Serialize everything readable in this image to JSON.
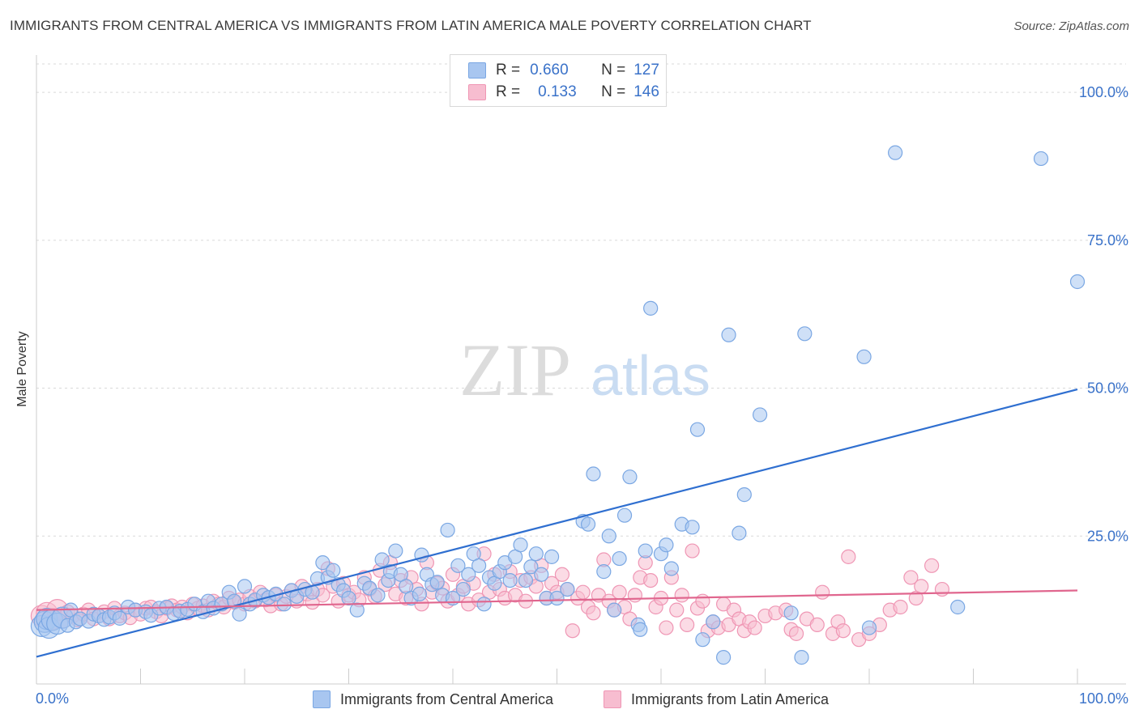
{
  "title": "IMMIGRANTS FROM CENTRAL AMERICA VS IMMIGRANTS FROM LATIN AMERICA MALE POVERTY CORRELATION CHART",
  "source": "Source: ZipAtlas.com",
  "watermark": {
    "zip": "ZIP",
    "atlas": "atlas"
  },
  "legend": {
    "blue": {
      "r_label": "R =",
      "r_value": "0.660",
      "n_label": "N =",
      "n_value": "127"
    },
    "pink": {
      "r_label": "R =",
      "r_value": "0.133",
      "n_label": "N =",
      "n_value": "146"
    }
  },
  "bottom_legend": {
    "blue": "Immigrants from Central America",
    "pink": "Immigrants from Latin America"
  },
  "colors": {
    "blue_fill": "#a8c6f0",
    "blue_stroke": "#7aa7e3",
    "blue_line": "#2f6fd0",
    "pink_fill": "#f7bdd0",
    "pink_stroke": "#ef96b4",
    "pink_line": "#e0668e",
    "axis_text": "#3a72c9",
    "grid": "#d9d9d9"
  },
  "chart_data": {
    "type": "scatter",
    "title": "IMMIGRANTS FROM CENTRAL AMERICA VS IMMIGRANTS FROM LATIN AMERICA MALE POVERTY CORRELATION CHART",
    "xlabel": "",
    "ylabel": "Male Poverty",
    "xlim": [
      0,
      100
    ],
    "ylim": [
      0,
      100
    ],
    "x_tick_labels": [
      "0.0%",
      "100.0%"
    ],
    "y_tick_values": [
      25,
      50,
      75,
      100
    ],
    "y_tick_labels": [
      "25.0%",
      "50.0%",
      "75.0%",
      "100.0%"
    ],
    "grid": true,
    "legend_position": "top-center",
    "series": [
      {
        "name": "Immigrants from Central America",
        "trend": {
          "x": [
            0,
            100
          ],
          "y": [
            4.6,
            49.8
          ]
        },
        "points": [
          [
            0.5,
            9.8
          ],
          [
            0.8,
            10.5
          ],
          [
            1,
            11
          ],
          [
            1.2,
            9.5
          ],
          [
            1.5,
            10.8
          ],
          [
            2,
            10.2
          ],
          [
            2.5,
            11.2
          ],
          [
            3,
            9.9
          ],
          [
            3.3,
            12.5
          ],
          [
            3.8,
            10.5
          ],
          [
            4.2,
            11
          ],
          [
            5,
            10.6
          ],
          [
            5.5,
            11.8
          ],
          [
            6,
            11.5
          ],
          [
            6.5,
            10.9
          ],
          [
            7,
            11.3
          ],
          [
            7.5,
            12
          ],
          [
            8,
            11.1
          ],
          [
            8.8,
            13
          ],
          [
            9.5,
            12.5
          ],
          [
            10.5,
            12.2
          ],
          [
            11,
            11.6
          ],
          [
            11.8,
            12.8
          ],
          [
            12.5,
            13
          ],
          [
            13.2,
            11.9
          ],
          [
            13.8,
            12.3
          ],
          [
            14.5,
            12.6
          ],
          [
            15.2,
            13.5
          ],
          [
            16,
            12.2
          ],
          [
            16.5,
            14
          ],
          [
            17,
            12.8
          ],
          [
            17.8,
            13.5
          ],
          [
            18.5,
            15.5
          ],
          [
            19,
            14
          ],
          [
            19.5,
            11.8
          ],
          [
            20,
            16.5
          ],
          [
            20.5,
            13.5
          ],
          [
            21,
            14.2
          ],
          [
            21.8,
            15
          ],
          [
            22.3,
            14.6
          ],
          [
            23,
            15.2
          ],
          [
            23.8,
            13.5
          ],
          [
            24.5,
            15.8
          ],
          [
            25,
            14.8
          ],
          [
            25.8,
            16
          ],
          [
            26.5,
            15.5
          ],
          [
            27,
            17.8
          ],
          [
            27.5,
            20.5
          ],
          [
            28,
            18
          ],
          [
            28.5,
            19.2
          ],
          [
            29,
            16.8
          ],
          [
            29.5,
            15.8
          ],
          [
            30,
            14.5
          ],
          [
            30.8,
            12.5
          ],
          [
            31.5,
            17
          ],
          [
            32,
            16.2
          ],
          [
            32.8,
            15
          ],
          [
            33.2,
            21
          ],
          [
            33.8,
            17.5
          ],
          [
            34,
            19
          ],
          [
            34.5,
            22.5
          ],
          [
            35,
            18.5
          ],
          [
            35.5,
            16.5
          ],
          [
            36,
            14.5
          ],
          [
            36.8,
            15.2
          ],
          [
            37,
            21.8
          ],
          [
            37.5,
            18.5
          ],
          [
            38,
            16.8
          ],
          [
            38.5,
            17.2
          ],
          [
            39,
            15
          ],
          [
            39.5,
            26
          ],
          [
            40,
            14.5
          ],
          [
            40.5,
            20
          ],
          [
            41,
            16
          ],
          [
            41.5,
            18.5
          ],
          [
            42,
            22
          ],
          [
            42.5,
            20
          ],
          [
            43,
            13.5
          ],
          [
            43.5,
            18
          ],
          [
            44,
            17
          ],
          [
            44.5,
            19
          ],
          [
            45,
            20.5
          ],
          [
            45.5,
            17.5
          ],
          [
            46,
            21.5
          ],
          [
            46.5,
            23.5
          ],
          [
            47,
            17.5
          ],
          [
            47.5,
            19.8
          ],
          [
            48,
            22
          ],
          [
            48.5,
            18.5
          ],
          [
            49,
            14.5
          ],
          [
            49.5,
            21.5
          ],
          [
            50,
            14.5
          ],
          [
            51,
            16
          ],
          [
            52.5,
            27.5
          ],
          [
            53,
            27
          ],
          [
            53.5,
            35.5
          ],
          [
            54.5,
            19
          ],
          [
            55,
            25
          ],
          [
            55.5,
            12.5
          ],
          [
            56,
            21.2
          ],
          [
            56.5,
            28.5
          ],
          [
            57,
            35
          ],
          [
            57.8,
            10
          ],
          [
            58,
            9.2
          ],
          [
            58.5,
            22.5
          ],
          [
            59,
            63.5
          ],
          [
            60,
            22
          ],
          [
            60.5,
            23.5
          ],
          [
            61,
            19.5
          ],
          [
            62,
            27
          ],
          [
            63,
            26.5
          ],
          [
            63.5,
            43
          ],
          [
            64,
            7.5
          ],
          [
            65,
            10.5
          ],
          [
            66,
            4.5
          ],
          [
            66.5,
            59
          ],
          [
            67.5,
            25.5
          ],
          [
            68,
            32
          ],
          [
            69.5,
            45.5
          ],
          [
            72.5,
            12
          ],
          [
            73.5,
            4.5
          ],
          [
            73.8,
            59.2
          ],
          [
            79.5,
            55.3
          ],
          [
            80,
            9.5
          ],
          [
            82.5,
            89.8
          ],
          [
            88.5,
            13
          ],
          [
            96.5,
            88.8
          ],
          [
            100,
            68
          ]
        ]
      },
      {
        "name": "Immigrants from Latin America",
        "trend": {
          "x": [
            0,
            100
          ],
          "y": [
            12.5,
            15.8
          ]
        },
        "points": [
          [
            0.5,
            11.5
          ],
          [
            1,
            12
          ],
          [
            1.5,
            11
          ],
          [
            2,
            12.5
          ],
          [
            2.5,
            11.2
          ],
          [
            3,
            12.2
          ],
          [
            3.5,
            11.5
          ],
          [
            4,
            10.8
          ],
          [
            4.5,
            11.8
          ],
          [
            5,
            12.5
          ],
          [
            5.5,
            11
          ],
          [
            6,
            11.5
          ],
          [
            6.5,
            12.2
          ],
          [
            7,
            11
          ],
          [
            7.5,
            12.8
          ],
          [
            8,
            11.5
          ],
          [
            8.5,
            12
          ],
          [
            9,
            11.2
          ],
          [
            9.5,
            12.5
          ],
          [
            10,
            11.8
          ],
          [
            10.5,
            12.8
          ],
          [
            11,
            13
          ],
          [
            11.5,
            12.2
          ],
          [
            12,
            11.5
          ],
          [
            12.5,
            12.8
          ],
          [
            13,
            13.2
          ],
          [
            13.5,
            12.5
          ],
          [
            14,
            13
          ],
          [
            14.5,
            12
          ],
          [
            15,
            13.5
          ],
          [
            15.5,
            12.8
          ],
          [
            16,
            13.2
          ],
          [
            16.5,
            12.5
          ],
          [
            17,
            14
          ],
          [
            17.5,
            13.5
          ],
          [
            18,
            13
          ],
          [
            18.5,
            14.5
          ],
          [
            19,
            13.8
          ],
          [
            19.5,
            14.2
          ],
          [
            20,
            13.5
          ],
          [
            20.5,
            14.8
          ],
          [
            21,
            14
          ],
          [
            21.5,
            15.5
          ],
          [
            22,
            14.2
          ],
          [
            22.5,
            13.2
          ],
          [
            23,
            15
          ],
          [
            23.5,
            13.5
          ],
          [
            24,
            14.8
          ],
          [
            24.5,
            15.8
          ],
          [
            25,
            14
          ],
          [
            25.5,
            16.5
          ],
          [
            26,
            15.2
          ],
          [
            26.5,
            13.8
          ],
          [
            27,
            16
          ],
          [
            27.5,
            15
          ],
          [
            28,
            19.5
          ],
          [
            28.5,
            16.5
          ],
          [
            29,
            14
          ],
          [
            29.5,
            17
          ],
          [
            30,
            15
          ],
          [
            30.5,
            15.5
          ],
          [
            31,
            14.2
          ],
          [
            31.5,
            18
          ],
          [
            32,
            16
          ],
          [
            32.5,
            14.8
          ],
          [
            33,
            19.2
          ],
          [
            33.5,
            16.8
          ],
          [
            34,
            20.5
          ],
          [
            34.5,
            15.2
          ],
          [
            35,
            17.5
          ],
          [
            35.5,
            14.5
          ],
          [
            36,
            18
          ],
          [
            36.5,
            16
          ],
          [
            37,
            13.5
          ],
          [
            37.5,
            20.5
          ],
          [
            38,
            15.5
          ],
          [
            38.5,
            17
          ],
          [
            39,
            16.2
          ],
          [
            39.5,
            14
          ],
          [
            40,
            18.5
          ],
          [
            40.5,
            15
          ],
          [
            41,
            16.5
          ],
          [
            41.5,
            13.5
          ],
          [
            42,
            17
          ],
          [
            42.5,
            14.2
          ],
          [
            43,
            22
          ],
          [
            43.5,
            15.5
          ],
          [
            44,
            18.5
          ],
          [
            44.5,
            16
          ],
          [
            45,
            14.5
          ],
          [
            45.5,
            19
          ],
          [
            46,
            15
          ],
          [
            46.5,
            17.5
          ],
          [
            47,
            14
          ],
          [
            47.5,
            18
          ],
          [
            48,
            16.5
          ],
          [
            48.5,
            20
          ],
          [
            49,
            14.5
          ],
          [
            49.5,
            17
          ],
          [
            50,
            15.5
          ],
          [
            50.5,
            18.5
          ],
          [
            51,
            16
          ],
          [
            51.5,
            9
          ],
          [
            52,
            14.5
          ],
          [
            52.5,
            15.5
          ],
          [
            53,
            13
          ],
          [
            53.5,
            12
          ],
          [
            54,
            15
          ],
          [
            54.5,
            21
          ],
          [
            55,
            14
          ],
          [
            55.5,
            12.5
          ],
          [
            56,
            15.5
          ],
          [
            56.5,
            13
          ],
          [
            57,
            11
          ],
          [
            57.5,
            15
          ],
          [
            58,
            18
          ],
          [
            58.5,
            20.5
          ],
          [
            59,
            17.5
          ],
          [
            59.5,
            13
          ],
          [
            60,
            14.5
          ],
          [
            60.5,
            9.5
          ],
          [
            61,
            18
          ],
          [
            61.5,
            12.5
          ],
          [
            62,
            15
          ],
          [
            62.5,
            10
          ],
          [
            63,
            22.5
          ],
          [
            63.5,
            12.8
          ],
          [
            64,
            14
          ],
          [
            64.5,
            9
          ],
          [
            65,
            10.5
          ],
          [
            65.5,
            9.5
          ],
          [
            66,
            13.5
          ],
          [
            66.5,
            10
          ],
          [
            67,
            12.5
          ],
          [
            67.5,
            11
          ],
          [
            68,
            9
          ],
          [
            68.5,
            10.5
          ],
          [
            69,
            9.5
          ],
          [
            70,
            11.5
          ],
          [
            71,
            12
          ],
          [
            72,
            12.5
          ],
          [
            72.5,
            9.2
          ],
          [
            73,
            8.5
          ],
          [
            74,
            11
          ],
          [
            75,
            10
          ],
          [
            75.5,
            15.5
          ],
          [
            76.5,
            8.5
          ],
          [
            77,
            10.5
          ],
          [
            77.5,
            9
          ],
          [
            78,
            21.5
          ],
          [
            79,
            7.5
          ],
          [
            80,
            8.5
          ],
          [
            81,
            10
          ],
          [
            82,
            12.5
          ],
          [
            83,
            13
          ],
          [
            84,
            18
          ],
          [
            84.5,
            14.5
          ],
          [
            85,
            16.5
          ],
          [
            86,
            20
          ],
          [
            87,
            16
          ]
        ]
      }
    ]
  }
}
